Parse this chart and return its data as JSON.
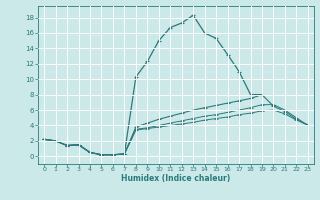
{
  "xlabel": "Humidex (Indice chaleur)",
  "background_color": "#cce9e9",
  "grid_color": "#ffffff",
  "line_color": "#2a7a7a",
  "xlim": [
    -0.5,
    23.5
  ],
  "ylim": [
    -1.0,
    19.5
  ],
  "xticks": [
    0,
    1,
    2,
    3,
    4,
    5,
    6,
    7,
    8,
    9,
    10,
    11,
    12,
    13,
    14,
    15,
    16,
    17,
    18,
    19,
    20,
    21,
    22,
    23
  ],
  "yticks": [
    0,
    2,
    4,
    6,
    8,
    10,
    12,
    14,
    16,
    18
  ],
  "line1_x": [
    0,
    1,
    2,
    3,
    4,
    5,
    6,
    7,
    8,
    9,
    10,
    11,
    12,
    13,
    14,
    15,
    16,
    17,
    18,
    19
  ],
  "line1_y": [
    2.2,
    2.0,
    1.4,
    1.5,
    0.5,
    0.2,
    0.2,
    0.3,
    10.3,
    12.3,
    15.0,
    16.7,
    17.3,
    18.3,
    16.0,
    15.3,
    13.2,
    11.0,
    8.0,
    8.0
  ],
  "line2_x": [
    0,
    1,
    2,
    3,
    4,
    5,
    6,
    7,
    8,
    9,
    10,
    11,
    12,
    13,
    14,
    15,
    16,
    17,
    18,
    19,
    20,
    21,
    22,
    23
  ],
  "line2_y": [
    2.2,
    2.0,
    1.4,
    1.5,
    0.5,
    0.2,
    0.2,
    0.3,
    3.8,
    4.3,
    4.8,
    5.2,
    5.6,
    6.0,
    6.3,
    6.6,
    6.9,
    7.2,
    7.5,
    8.0,
    6.5,
    5.8,
    4.8,
    4.0
  ],
  "line3_x": [
    0,
    1,
    2,
    3,
    4,
    5,
    6,
    7,
    8,
    9,
    10,
    11,
    12,
    13,
    14,
    15,
    16,
    17,
    18,
    19,
    20,
    21,
    22,
    23
  ],
  "line3_y": [
    2.2,
    2.0,
    1.4,
    1.5,
    0.5,
    0.2,
    0.2,
    0.3,
    3.5,
    3.7,
    4.0,
    4.3,
    4.6,
    4.9,
    5.2,
    5.4,
    5.7,
    6.0,
    6.3,
    6.7,
    6.7,
    6.0,
    5.0,
    4.0
  ],
  "line4_x": [
    0,
    1,
    2,
    3,
    4,
    5,
    6,
    7,
    8,
    9,
    10,
    11,
    12,
    13,
    14,
    15,
    16,
    17,
    18,
    19,
    20,
    21,
    22,
    23
  ],
  "line4_y": [
    2.2,
    2.0,
    1.4,
    1.5,
    0.5,
    0.2,
    0.2,
    0.3,
    3.4,
    3.6,
    3.8,
    4.0,
    4.2,
    4.4,
    4.7,
    4.9,
    5.1,
    5.4,
    5.6,
    5.9,
    6.0,
    5.5,
    4.7,
    4.1
  ]
}
